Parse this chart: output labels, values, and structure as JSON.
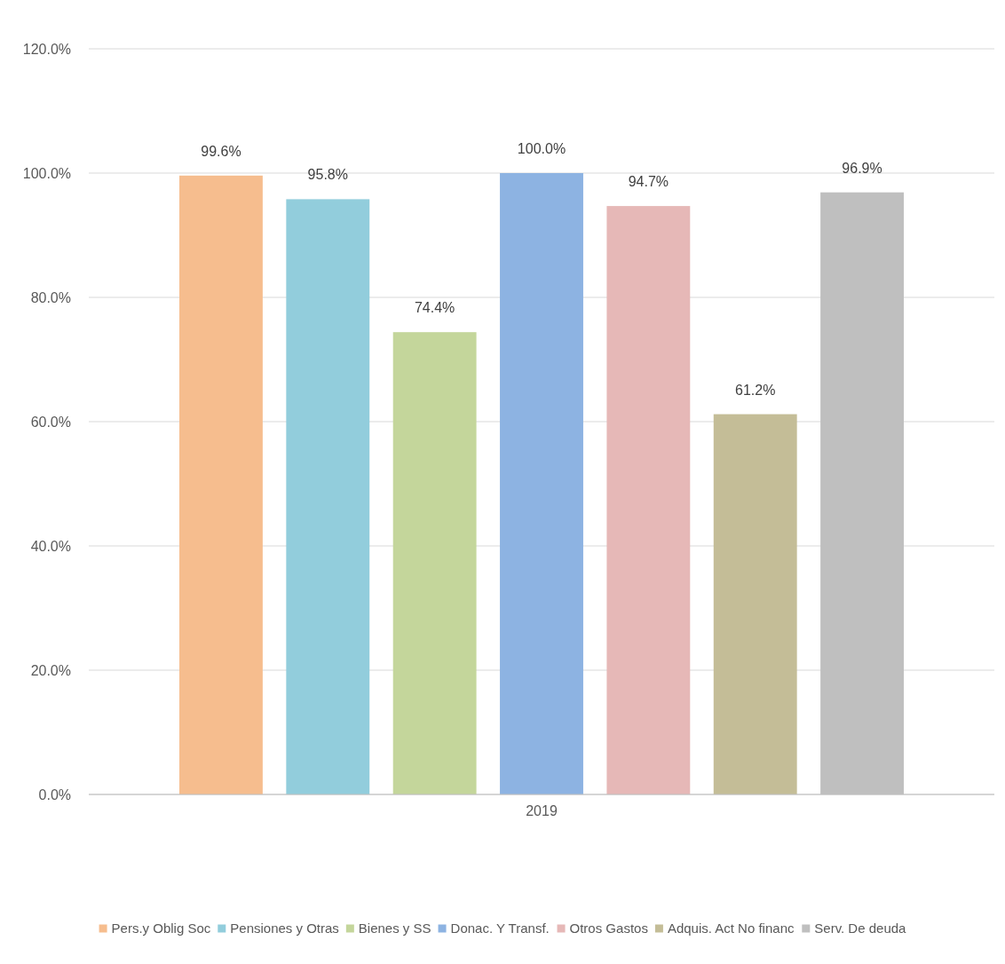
{
  "chart_data": {
    "type": "bar",
    "categories": [
      "2019"
    ],
    "series": [
      {
        "name": "Pers.y Oblig Soc",
        "color": "#f6bd8e",
        "values": [
          99.6
        ],
        "value_labels": [
          "99.6%"
        ]
      },
      {
        "name": "Pensiones y Otras",
        "color": "#92cddc",
        "values": [
          95.8
        ],
        "value_labels": [
          "95.8%"
        ]
      },
      {
        "name": "Bienes y SS",
        "color": "#c4d69b",
        "values": [
          74.4
        ],
        "value_labels": [
          "74.4%"
        ]
      },
      {
        "name": "Donac. Y Transf.",
        "color": "#8db3e2",
        "values": [
          100.0
        ],
        "value_labels": [
          "100.0%"
        ]
      },
      {
        "name": "Otros Gastos",
        "color": "#e6b8b7",
        "values": [
          94.7
        ],
        "value_labels": [
          "94.7%"
        ]
      },
      {
        "name": "Adquis. Act No financ",
        "color": "#c4bd97",
        "values": [
          61.2
        ],
        "value_labels": [
          "61.2%"
        ]
      },
      {
        "name": "Serv. De deuda",
        "color": "#bfbfbf",
        "values": [
          96.9
        ],
        "value_labels": [
          "96.9%"
        ]
      }
    ],
    "ylim": [
      0,
      120
    ],
    "yticks": [
      {
        "value": 0,
        "label": "0.0%"
      },
      {
        "value": 20,
        "label": "20.0%"
      },
      {
        "value": 40,
        "label": "40.0%"
      },
      {
        "value": 60,
        "label": "60.0%"
      },
      {
        "value": 80,
        "label": "80.0%"
      },
      {
        "value": 100,
        "label": "100.0%"
      },
      {
        "value": 120,
        "label": "120.0%"
      }
    ],
    "grid": "y",
    "legend": "bottom"
  }
}
